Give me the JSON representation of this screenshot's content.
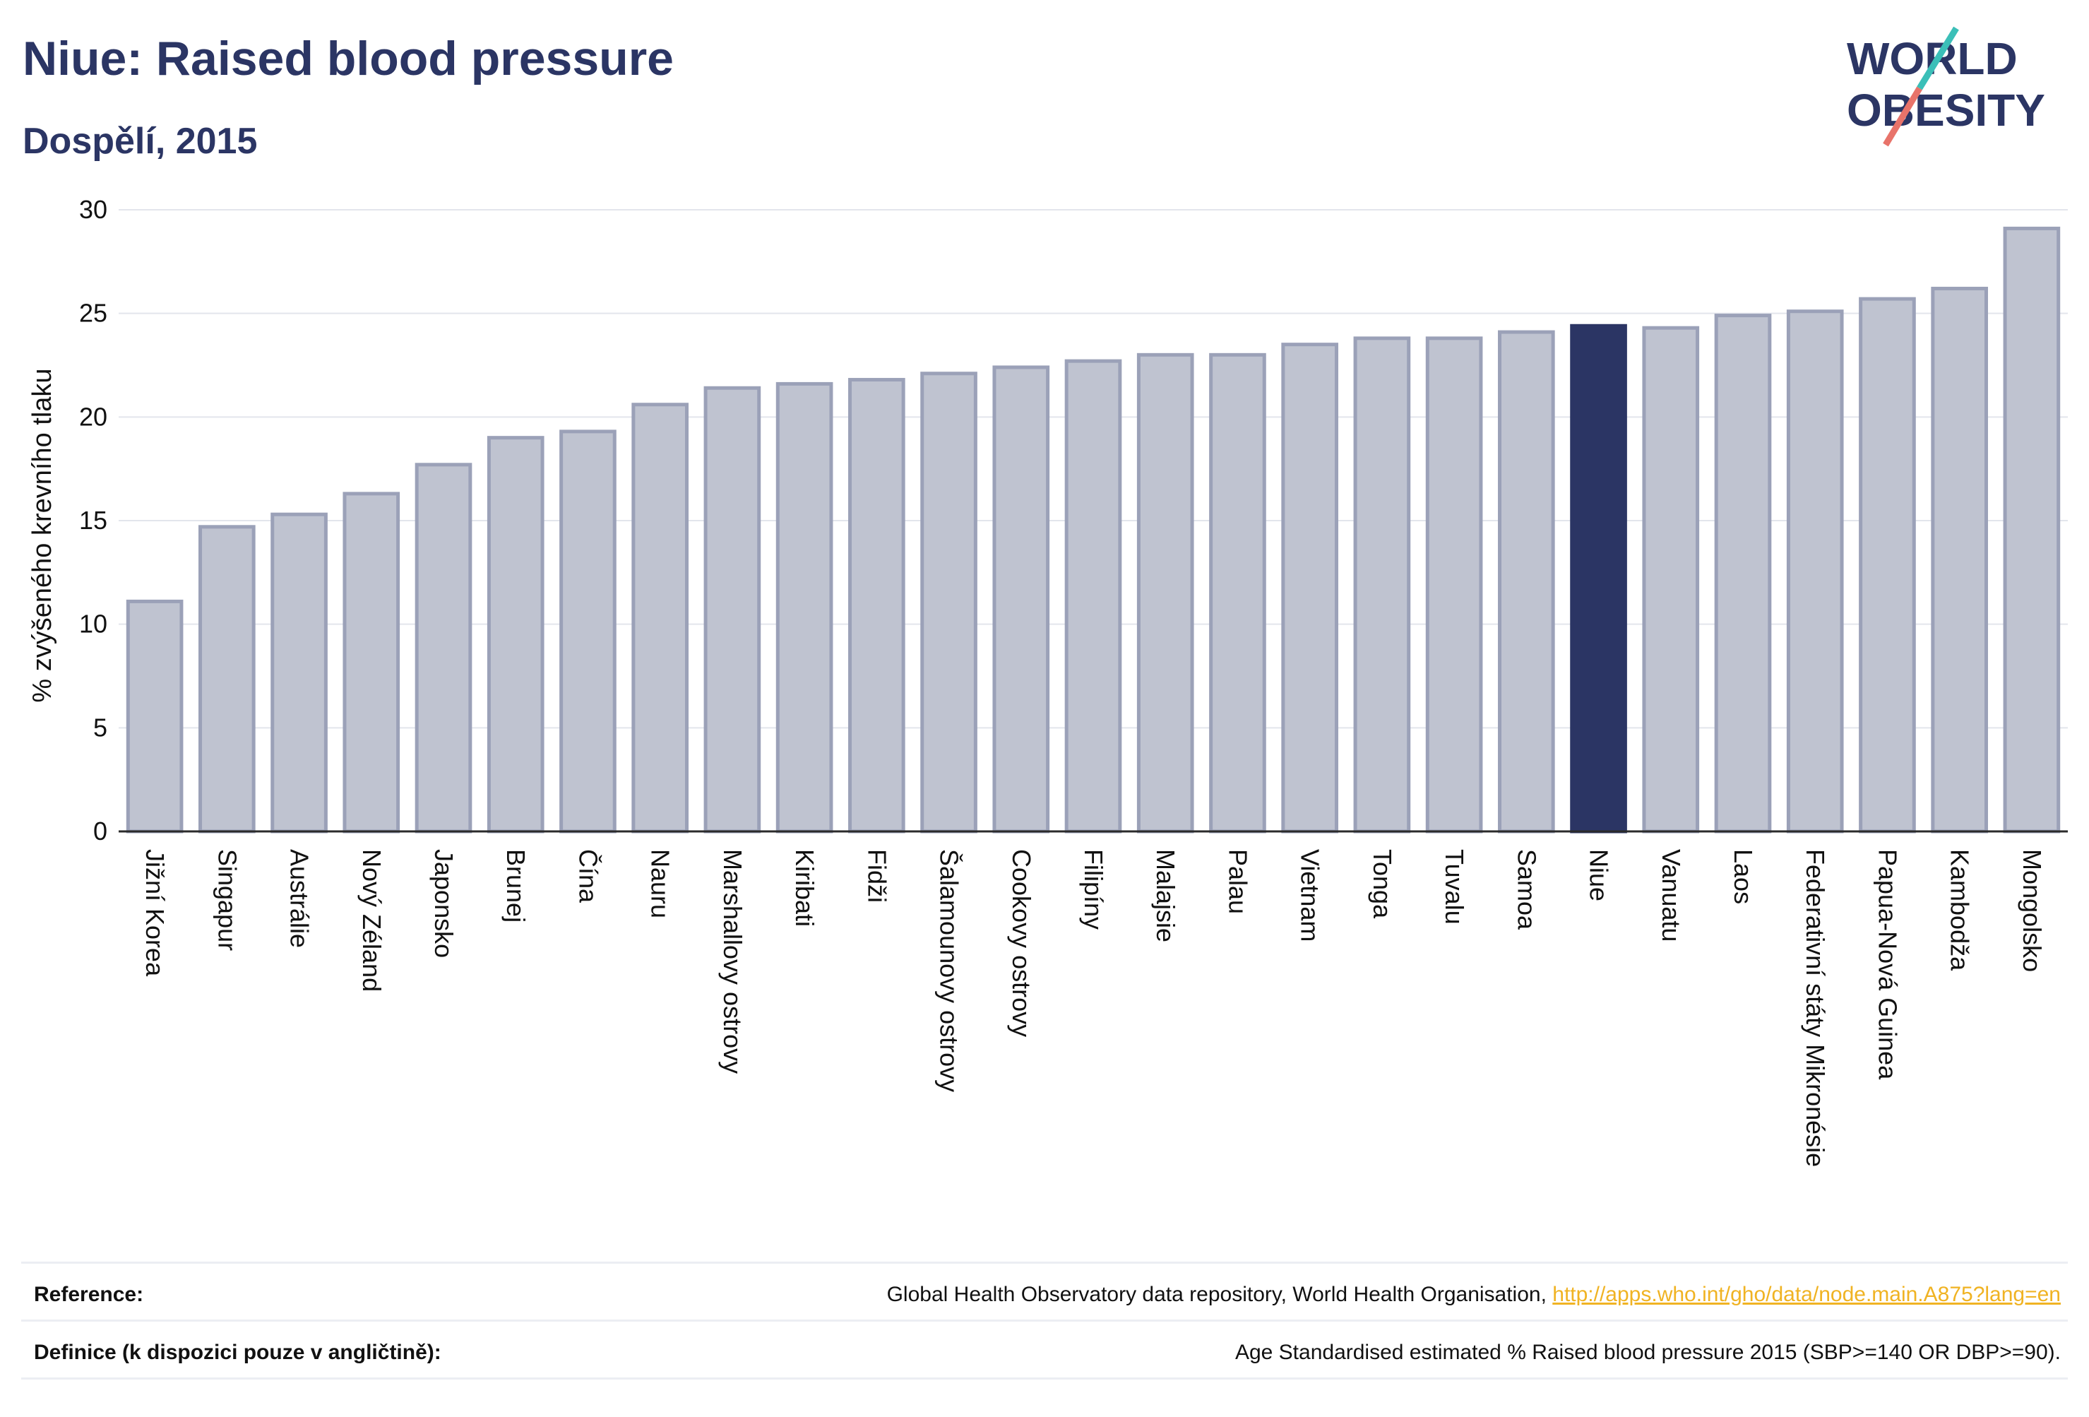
{
  "chart_data": {
    "type": "bar",
    "title": "Niue: Raised blood pressure",
    "subtitle": "Dospělí, 2015",
    "ylabel": "% zvýšeného krevního tlaku",
    "xlabel": "",
    "ylim": [
      0,
      30
    ],
    "yticks": [
      0,
      5,
      10,
      15,
      20,
      25,
      30
    ],
    "grid": true,
    "highlight": "Niue",
    "categories": [
      "Jižní Korea",
      "Singapur",
      "Austrálie",
      "Nový Zéland",
      "Japonsko",
      "Brunej",
      "Čína",
      "Nauru",
      "Marshallovy ostrovy",
      "Kiribati",
      "Fidži",
      "Šalamounovy ostrovy",
      "Cookovy ostrovy",
      "Filipíny",
      "Malajsie",
      "Palau",
      "Vietnam",
      "Tonga",
      "Tuvalu",
      "Samoa",
      "Niue",
      "Vanuatu",
      "Laos",
      "Federativní státy Mikronésie",
      "Papua-Nová Guinea",
      "Kambodža",
      "Mongolsko"
    ],
    "values": [
      11.1,
      14.7,
      15.3,
      16.3,
      17.7,
      19.0,
      19.3,
      20.6,
      21.4,
      21.6,
      21.8,
      22.1,
      22.4,
      22.7,
      23.0,
      23.0,
      23.5,
      23.8,
      23.8,
      24.1,
      24.4,
      24.3,
      24.9,
      25.1,
      25.7,
      26.2,
      29.1
    ]
  },
  "colors": {
    "bar": "#bfc3d0",
    "bar_border": "#9ba1b8",
    "highlight": "#2b3564",
    "text": "#2b3564",
    "logo_teal": "#3bbfb8",
    "logo_red": "#e8736a"
  },
  "logo": {
    "line1": "WORLD",
    "line2": "OBESITY"
  },
  "footer": {
    "reference_label": "Reference:",
    "reference_text": "Global Health Observatory data repository, World Health Organisation, ",
    "reference_link": "http://apps.who.int/gho/data/node.main.A875?lang=en",
    "definition_label": "Definice (k dispozici pouze v angličtině):",
    "definition_text": "Age Standardised estimated % Raised blood pressure 2015 (SBP>=140 OR DBP>=90)."
  }
}
